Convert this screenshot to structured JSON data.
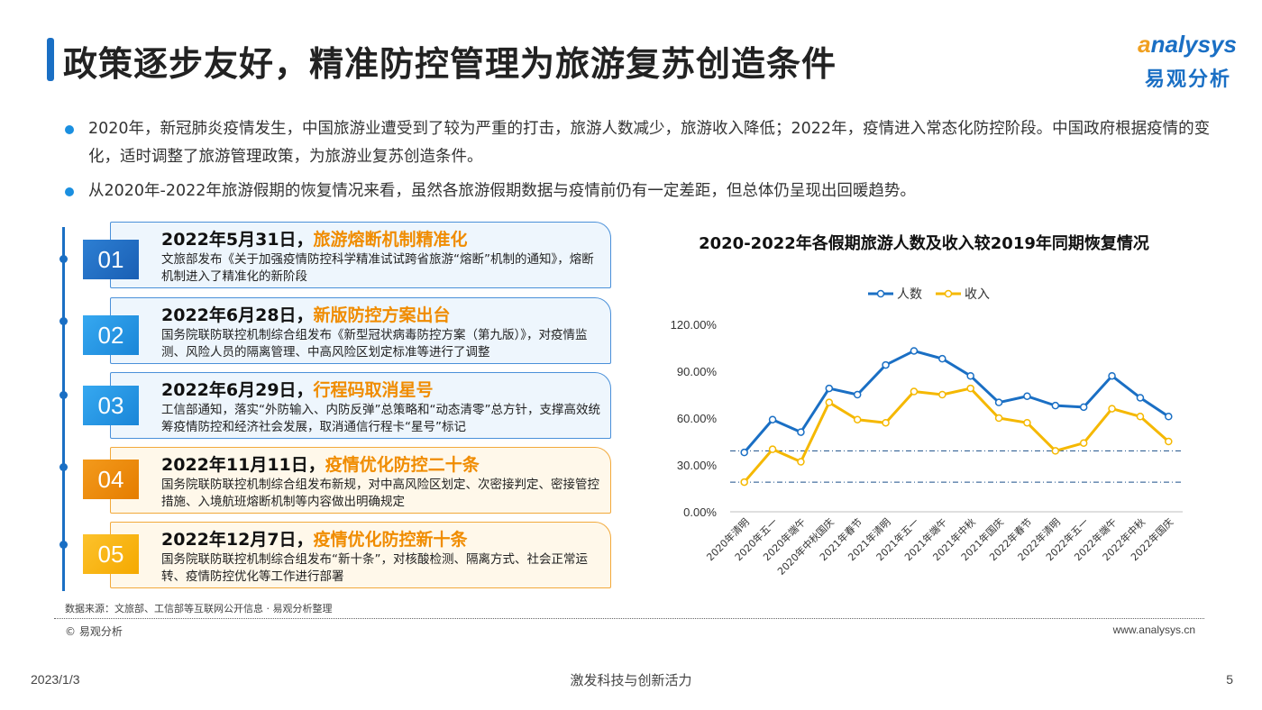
{
  "header": {
    "title": "政策逐步友好，精准防控管理为旅游复苏创造条件",
    "logo_en_a": "a",
    "logo_en_rest": "nalysys",
    "logo_cn": "易观分析"
  },
  "bullets": [
    "2020年，新冠肺炎疫情发生，中国旅游业遭受到了较为严重的打击，旅游人数减少，旅游收入降低；2022年，疫情进入常态化防控阶段。中国政府根据疫情的变化，适时调整了旅游管理政策，为旅游业复苏创造条件。",
    "从2020年-2022年旅游假期的恢复情况来看，虽然各旅游假期数据与疫情前仍有一定差距，但总体仍呈现出回暖趋势。"
  ],
  "timeline": [
    {
      "num": "01",
      "date": "2022年5月31日，",
      "headline": "旅游熔断机制精准化",
      "body": "文旅部发布《关于加强疫情防控科学精准试试跨省旅游“熔断”机制的通知》，熔断机制进入了精准化的新阶段"
    },
    {
      "num": "02",
      "date": "2022年6月28日，",
      "headline": "新版防控方案出台",
      "body": "国务院联防联控机制综合组发布《新型冠状病毒防控方案（第九版）》，对疫情监测、风险人员的隔离管理、中高风险区划定标准等进行了调整"
    },
    {
      "num": "03",
      "date": "2022年6月29日，",
      "headline": "行程码取消星号",
      "body": "工信部通知，落实“外防输入、内防反弹”总策略和“动态清零”总方针，支撑高效统筹疫情防控和经济社会发展，取消通信行程卡“星号”标记"
    },
    {
      "num": "04",
      "date": "2022年11月11日，",
      "headline": "疫情优化防控二十条",
      "body": "国务院联防联控机制综合组发布新规，对中高风险区划定、次密接判定、密接管控措施、入境航班熔断机制等内容做出明确规定"
    },
    {
      "num": "05",
      "date": "2022年12月7日，",
      "headline": "疫情优化防控新十条",
      "body": "国务院联防联控机制综合组发布“新十条”，对核酸检测、隔离方式、社会正常运转、疫情防控优化等工作进行部署"
    }
  ],
  "chart_data": {
    "type": "line",
    "title": "2020-2022年各假期旅游人数及收入较2019年同期恢复情况",
    "categories": [
      "2020年清明",
      "2020年五一",
      "2020年端午",
      "2020年中秋国庆",
      "2021年春节",
      "2021年清明",
      "2021年五一",
      "2021年端午",
      "2021年中秋",
      "2021年国庆",
      "2022年春节",
      "2022年清明",
      "2022年五一",
      "2022年端午",
      "2022年中秋",
      "2022年国庆"
    ],
    "series": [
      {
        "name": "人数",
        "color": "#1a6fc4",
        "values": [
          38,
          59,
          51,
          79,
          75,
          94,
          103,
          98,
          87,
          70,
          74,
          68,
          67,
          87,
          73,
          61
        ]
      },
      {
        "name": "收入",
        "color": "#f5b800",
        "values": [
          19,
          40,
          32,
          70,
          59,
          57,
          77,
          75,
          79,
          60,
          57,
          39,
          44,
          66,
          61,
          45
        ]
      }
    ],
    "yticks": [
      "0.00%",
      "30.00%",
      "60.00%",
      "90.00%",
      "120.00%"
    ],
    "ylim": [
      0,
      120
    ],
    "ref_lines": [
      39,
      19
    ],
    "legend_position": "top"
  },
  "footer": {
    "source": "数据来源：文旅部、工信部等互联网公开信息 · 易观分析整理",
    "copyright": "© 易观分析",
    "website": "www.analysys.cn",
    "date": "2023/1/3",
    "slogan": "激发科技与创新活力",
    "page": "5"
  }
}
